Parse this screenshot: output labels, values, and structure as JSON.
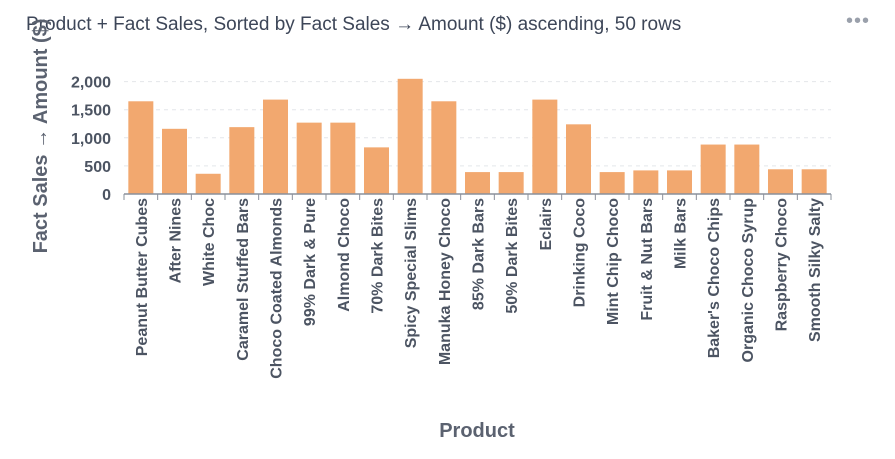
{
  "card": {
    "title": "Product + Fact Sales, Sorted by Fact Sales → Amount ($) ascending, 50 rows",
    "menu_icon": "more-horizontal-icon",
    "menu_glyph": "•••"
  },
  "chart_data": {
    "type": "bar",
    "xlabel": "Product",
    "ylabel": "Fact Sales → Amount ($)",
    "categories": [
      "Peanut Butter Cubes",
      "After Nines",
      "White Choc",
      "Caramel Stuffed Bars",
      "Choco Coated Almonds",
      "99% Dark & Pure",
      "Almond Choco",
      "70% Dark Bites",
      "Spicy Special Slims",
      "Manuka Honey Choco",
      "85% Dark Bars",
      "50% Dark Bites",
      "Eclairs",
      "Drinking Coco",
      "Mint Chip Choco",
      "Fruit & Nut Bars",
      "Milk Bars",
      "Baker's Choco Chips",
      "Organic Choco Syrup",
      "Raspberry Choco",
      "Smooth Silky Salty"
    ],
    "values": [
      1650,
      1160,
      360,
      1190,
      1680,
      1270,
      1270,
      830,
      2050,
      1650,
      390,
      390,
      1680,
      1240,
      390,
      420,
      420,
      880,
      880,
      440,
      440
    ],
    "yticks": [
      "0",
      "500",
      "1,000",
      "1,500",
      "2,000"
    ],
    "ylim": [
      0,
      2100
    ],
    "bar_color": "#f2a86f",
    "grid": true
  }
}
